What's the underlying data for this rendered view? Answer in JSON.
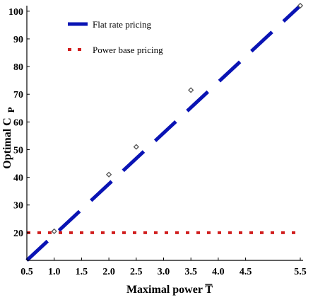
{
  "chart_data": {
    "type": "line",
    "xlabel": "Maximal power T",
    "ylabel_main": "Optimal C",
    "ylabel_sub": "P",
    "xlim": [
      0.5,
      5.5
    ],
    "ylim": [
      10,
      102
    ],
    "x_ticks": [
      0.5,
      1.0,
      1.5,
      2.0,
      2.5,
      3.0,
      3.5,
      4.0,
      4.5,
      5.5
    ],
    "x_tick_labels": [
      "0.5",
      "1.0",
      "1.5",
      "2.0",
      "2.5",
      "3.0",
      "3.5",
      "4.0",
      "4.5",
      "5.5"
    ],
    "y_ticks": [
      20,
      30,
      40,
      50,
      60,
      70,
      80,
      90,
      100
    ],
    "y_tick_labels": [
      "20",
      "30",
      "40",
      "50",
      "60",
      "70",
      "80",
      "90",
      "100"
    ],
    "grid": false,
    "legend_position": "top-left",
    "series": [
      {
        "name": "Flat rate pricing",
        "style": "long-dash",
        "color": "#0a14b4",
        "x": [
          0.5,
          5.5
        ],
        "y": [
          10,
          102
        ]
      },
      {
        "name": "Power base pricing",
        "style": "dotted",
        "color": "#d01c1c",
        "x": [
          0.5,
          5.5
        ],
        "y": [
          20,
          20
        ]
      }
    ],
    "markers": {
      "style": "hollow-diamond",
      "color": "#555555",
      "points": [
        {
          "x": 1.0,
          "y": 20.5
        },
        {
          "x": 2.0,
          "y": 41
        },
        {
          "x": 2.5,
          "y": 51
        },
        {
          "x": 3.5,
          "y": 71.5
        },
        {
          "x": 5.5,
          "y": 102
        }
      ]
    }
  }
}
